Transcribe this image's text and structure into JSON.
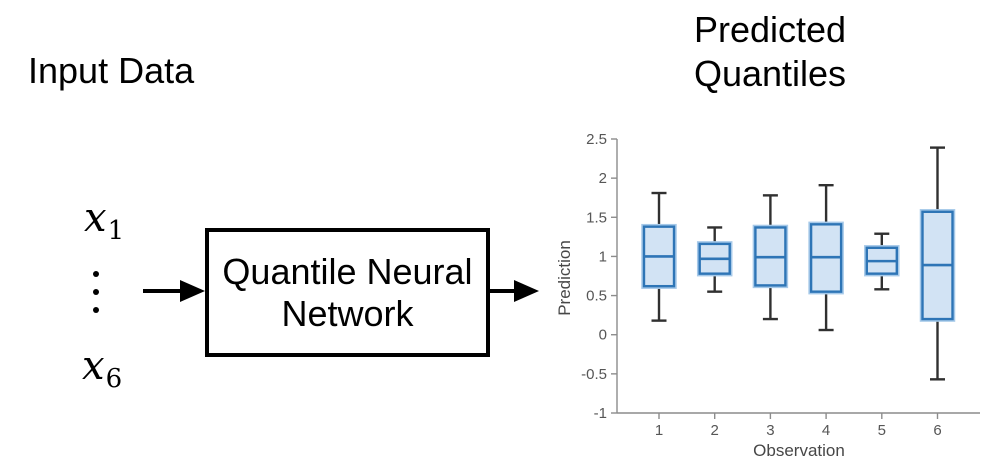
{
  "diagram": {
    "input_label": "Input Data",
    "inputs": [
      {
        "base": "x",
        "sub": "1"
      },
      {
        "base": "x",
        "sub": "6"
      }
    ],
    "ellipsis": "vertical-dots",
    "box_label_line1": "Quantile Neural",
    "box_label_line2": "Network",
    "output_title_line1": "Predicted",
    "output_title_line2": "Quantiles"
  },
  "chart_data": {
    "type": "boxplot",
    "title": "Predicted Quantiles",
    "xlabel": "Observation",
    "ylabel": "Prediction",
    "categories": [
      "1",
      "2",
      "3",
      "4",
      "5",
      "6"
    ],
    "ylim": [
      -1,
      2.5
    ],
    "yticks": [
      -1,
      -0.5,
      0,
      0.5,
      1,
      1.5,
      2,
      2.5
    ],
    "grid": false,
    "legend": "none",
    "boxes": [
      {
        "observation": "1",
        "whisker_low": 0.18,
        "q1": 0.62,
        "median": 1.0,
        "q3": 1.38,
        "whisker_high": 1.81
      },
      {
        "observation": "2",
        "whisker_low": 0.55,
        "q1": 0.78,
        "median": 0.97,
        "q3": 1.16,
        "whisker_high": 1.37
      },
      {
        "observation": "3",
        "whisker_low": 0.2,
        "q1": 0.63,
        "median": 0.99,
        "q3": 1.37,
        "whisker_high": 1.78
      },
      {
        "observation": "4",
        "whisker_low": 0.06,
        "q1": 0.55,
        "median": 0.99,
        "q3": 1.41,
        "whisker_high": 1.91
      },
      {
        "observation": "5",
        "whisker_low": 0.58,
        "q1": 0.78,
        "median": 0.94,
        "q3": 1.11,
        "whisker_high": 1.29
      },
      {
        "observation": "6",
        "whisker_low": -0.57,
        "q1": 0.2,
        "median": 0.89,
        "q3": 1.57,
        "whisker_high": 2.39
      }
    ],
    "colors": {
      "box_fill": "#d2e3f4",
      "box_edge": "#2e75b6",
      "box_halo": "#a6c9e9",
      "median": "#2e75b6",
      "whisker": "#303030",
      "axis": "#8c8c8c"
    }
  }
}
